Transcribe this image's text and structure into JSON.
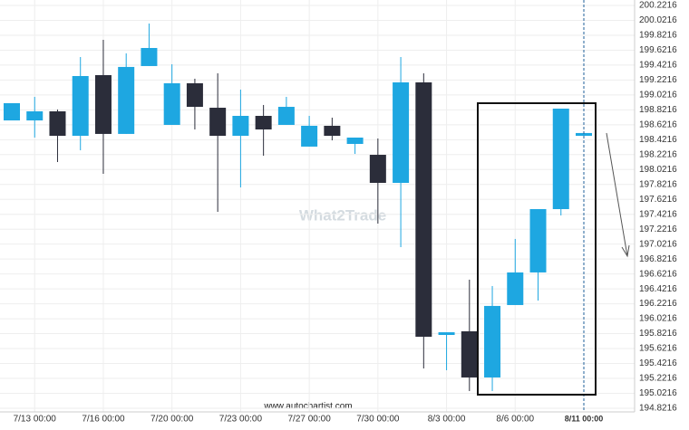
{
  "chart_data": {
    "type": "candlestick",
    "categories": [
      null,
      "7/13 00:00",
      null,
      null,
      "7/16 00:00",
      null,
      null,
      "7/20 00:00",
      null,
      null,
      "7/23 00:00",
      null,
      null,
      "7/27 00:00",
      null,
      null,
      "7/30 00:00",
      null,
      null,
      "8/3 00:00",
      null,
      null,
      "8/6 00:00",
      null,
      null,
      "8/11 00:00"
    ],
    "open": [
      198.68,
      198.68,
      198.802,
      198.474,
      199.287,
      198.499,
      199.409,
      198.62,
      199.178,
      198.85,
      198.474,
      198.741,
      198.62,
      198.329,
      198.608,
      198.365,
      198.219,
      197.843,
      199.19,
      195.804,
      195.853,
      195.234,
      196.205,
      196.642,
      197.491,
      198.474
    ],
    "high": [
      198.911,
      198.996,
      198.826,
      199.53,
      199.76,
      199.579,
      199.979,
      199.433,
      199.239,
      199.312,
      199.093,
      198.887,
      198.996,
      198.741,
      198.717,
      198.45,
      198.438,
      199.53,
      199.312,
      195.84,
      196.545,
      196.46,
      197.091,
      197.491,
      198.838,
      198.511
    ],
    "low": [
      198.68,
      198.45,
      198.122,
      198.28,
      197.964,
      198.499,
      199.409,
      198.62,
      198.559,
      197.455,
      197.782,
      198.207,
      198.62,
      198.329,
      198.413,
      198.231,
      197.297,
      196.981,
      195.355,
      195.331,
      195.052,
      195.052,
      196.205,
      196.265,
      197.406,
      198.474
    ],
    "close": [
      198.911,
      198.802,
      198.474,
      199.275,
      198.499,
      199.397,
      199.651,
      199.178,
      198.862,
      198.474,
      198.741,
      198.559,
      198.862,
      198.608,
      198.474,
      198.45,
      197.843,
      199.19,
      195.78,
      195.84,
      195.234,
      196.193,
      196.642,
      197.491,
      198.838,
      198.511
    ],
    "up_color": "#1ea7e1",
    "down_color": "#2b2d3a",
    "ylim": [
      194.7725,
      200.2944
    ],
    "yticks": [
      200.2216,
      200.0216,
      199.8216,
      199.6216,
      199.4216,
      199.2216,
      199.0216,
      198.8216,
      198.6216,
      198.4216,
      198.2216,
      198.0216,
      197.8216,
      197.6216,
      197.4216,
      197.2216,
      197.0216,
      196.8216,
      196.6216,
      196.4216,
      196.2216,
      196.0216,
      195.8216,
      195.6216,
      195.4216,
      195.2216,
      195.0216,
      194.8216
    ],
    "grid": true,
    "watermark": "What2Trade",
    "source": "www.autochartist.com"
  }
}
